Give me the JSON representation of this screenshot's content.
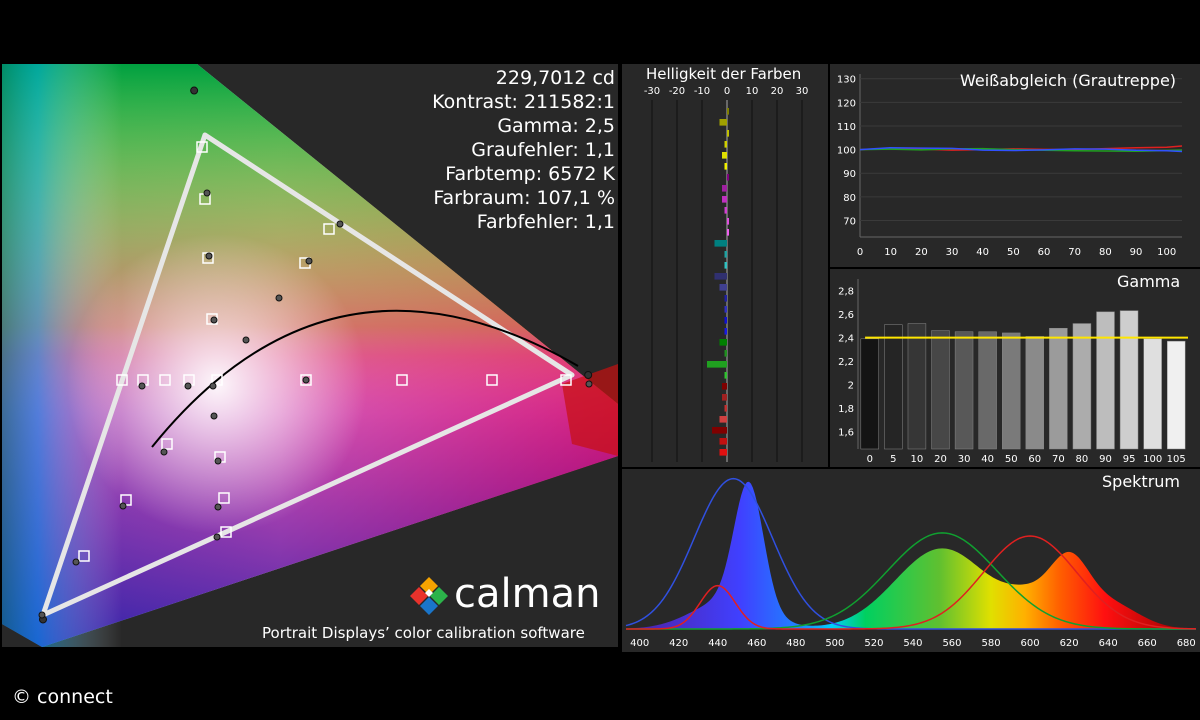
{
  "stats": {
    "luminance": "229,7012 cd",
    "contrast": "Kontrast: 211582:1",
    "gamma": "Gamma: 2,5",
    "grey_error": "Graufehler: 1,1",
    "color_temp": "Farbtemp: 6572 K",
    "gamut": "Farbraum: 107,1 %",
    "color_error": "Farbfehler: 1,1"
  },
  "branding": {
    "logo_text": "calman",
    "tagline": "Portrait Displays’ color calibration software",
    "credit": "© connect"
  },
  "colors": {
    "background": "#282828",
    "triangle": "#e6e6e6",
    "gamma_target": "#ffe600",
    "spectrum_blue": "#3050e0",
    "spectrum_green": "#10a030",
    "spectrum_red": "#e02020"
  },
  "chart_data": [
    {
      "type": "scatter",
      "panel": "cie-diagram",
      "targets": [
        [
          0.64,
          0.33
        ],
        [
          0.3,
          0.6
        ],
        [
          0.15,
          0.06
        ]
      ],
      "measured_primaries": [
        [
          0.655,
          0.33
        ],
        [
          0.29,
          0.65
        ],
        [
          0.15,
          0.055
        ]
      ]
    },
    {
      "type": "bar",
      "title": "Helligkeit der Farben",
      "x_ticks": [
        "-30",
        "-20",
        "-10",
        "0",
        "10",
        "20",
        "30"
      ],
      "xlim": [
        -30,
        30
      ],
      "values": [
        0,
        -3,
        0,
        -1,
        -2,
        -1,
        0,
        -2,
        -2,
        -1,
        0,
        0,
        -5,
        -1,
        -1,
        -5,
        -3,
        -1,
        -1,
        -1,
        -1,
        -3,
        -1,
        -8,
        -1,
        -2,
        -2,
        -1,
        -3,
        -6,
        -3,
        -3
      ]
    },
    {
      "type": "line",
      "title": "Weißabgleich (Grautreppe)",
      "x_ticks": [
        "0",
        "10",
        "20",
        "30",
        "40",
        "50",
        "60",
        "70",
        "80",
        "90",
        "100"
      ],
      "y_ticks": [
        "130",
        "120",
        "110",
        "100",
        "90",
        "80",
        "70"
      ],
      "xlim": [
        0,
        105
      ],
      "ylim": [
        63,
        132
      ],
      "x": [
        0,
        10,
        20,
        30,
        40,
        50,
        60,
        70,
        80,
        90,
        100,
        105
      ],
      "series": [
        {
          "color": "#e02020",
          "values": [
            100,
            100.5,
            100.2,
            99.8,
            100,
            100.3,
            100.1,
            100,
            100.4,
            100.8,
            101,
            101.5
          ]
        },
        {
          "color": "#20a020",
          "values": [
            100,
            100.2,
            99.9,
            100.3,
            100.4,
            100,
            99.7,
            99.5,
            99.4,
            99.3,
            99.6,
            99.8
          ]
        },
        {
          "color": "#3050ff",
          "values": [
            100,
            100.8,
            100.6,
            100.5,
            99.8,
            99.6,
            99.9,
            100.3,
            100.2,
            99.7,
            99.5,
            99.2
          ]
        }
      ]
    },
    {
      "type": "bar",
      "title": "Gamma",
      "categories": [
        "0",
        "5",
        "10",
        "20",
        "30",
        "40",
        "50",
        "60",
        "70",
        "80",
        "90",
        "95",
        "100",
        "105"
      ],
      "values": [
        2.39,
        2.51,
        2.52,
        2.46,
        2.45,
        2.45,
        2.44,
        2.41,
        2.48,
        2.52,
        2.62,
        2.63,
        2.39,
        2.37
      ],
      "target": 2.4,
      "y_ticks": [
        "2,8",
        "2,6",
        "2,4",
        "2,2",
        "2",
        "1,8",
        "1,6"
      ],
      "ylim": [
        1.45,
        2.9
      ]
    },
    {
      "type": "line",
      "title": "Spektrum",
      "x_ticks": [
        "400",
        "420",
        "440",
        "460",
        "480",
        "500",
        "520",
        "540",
        "560",
        "580",
        "600",
        "620",
        "640",
        "660",
        "680"
      ],
      "xlim": [
        393,
        685
      ]
    }
  ]
}
